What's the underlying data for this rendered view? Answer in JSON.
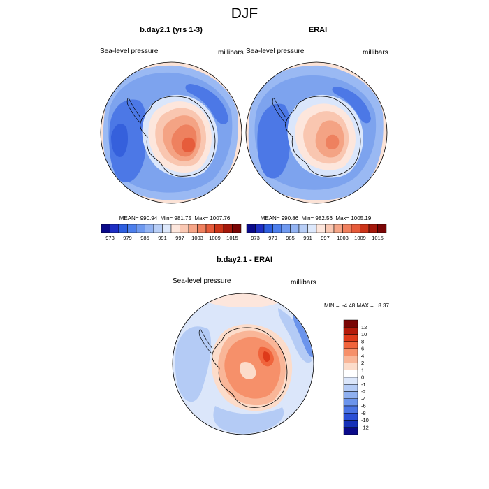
{
  "figure": {
    "title": "DJF"
  },
  "panels": [
    {
      "id": "model",
      "title": "b.day2.1 (yrs 1-3)",
      "left_label": "Sea-level pressure",
      "right_label": "millibars",
      "stats": "MEAN= 990.94  Min= 981.75  Max= 1007.76"
    },
    {
      "id": "obs",
      "title": "ERAI",
      "left_label": "Sea-level pressure",
      "right_label": "millibars",
      "stats": "MEAN= 990.86  Min= 982.56  Max= 1005.19"
    },
    {
      "id": "diff",
      "title": "b.day2.1 - ERAI",
      "left_label": "Sea-level pressure",
      "right_label": "millibars",
      "stats": "MIN =  -4.48 MAX =   8.37"
    }
  ],
  "colorbar_top": {
    "orientation": "horizontal",
    "colors": [
      "#0a0a8a",
      "#1e2fc4",
      "#2e5fe0",
      "#4d7fec",
      "#6f99ef",
      "#93b3f2",
      "#b8cef6",
      "#dde8fb",
      "#fde6dc",
      "#fac8b3",
      "#f6a587",
      "#f0805e",
      "#e65b3a",
      "#cc3418",
      "#a5170a",
      "#7a0505"
    ],
    "tick_labels": [
      "973",
      "979",
      "985",
      "991",
      "997",
      "1003",
      "1009",
      "1015"
    ]
  },
  "colorbar_diff": {
    "orientation": "vertical",
    "colors": [
      "#7a0505",
      "#b41a0a",
      "#de3a1a",
      "#f0643c",
      "#f6906a",
      "#f9b698",
      "#fcdcca",
      "#ffffff",
      "#dbe6fa",
      "#b4cbf5",
      "#8fb0f0",
      "#6b94ec",
      "#4a74e4",
      "#2a4fd6",
      "#1530b8",
      "#0a0a8a"
    ],
    "tick_labels": [
      "12",
      "10",
      "8",
      "6",
      "4",
      "2",
      "1",
      "0",
      "-1",
      "-2",
      "-4",
      "-6",
      "-8",
      "-10",
      "-12"
    ]
  }
}
